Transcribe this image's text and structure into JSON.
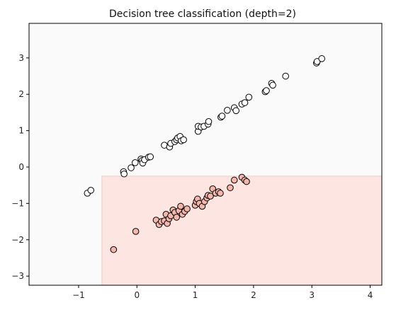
{
  "chart_data": {
    "type": "scatter",
    "title": "Decision tree classification (depth=2)",
    "xlabel": "",
    "ylabel": "",
    "xlim": [
      -1.85,
      4.2
    ],
    "ylim": [
      -3.25,
      3.95
    ],
    "xticks": [
      -1,
      0,
      1,
      2,
      3,
      4
    ],
    "yticks": [
      -3,
      -2,
      -1,
      0,
      1,
      2,
      3
    ],
    "grid": false,
    "regions": [
      {
        "class": 0,
        "x": [
          -1.85,
          4.2
        ],
        "y": [
          -3.25,
          3.95
        ],
        "color": "#fafafa"
      },
      {
        "class": 1,
        "x": [
          -0.6,
          4.2
        ],
        "y": [
          -3.25,
          -0.25
        ],
        "color": "#fde5e2"
      }
    ],
    "series": [
      {
        "color": "#ffffff",
        "points": [
          [
            -0.85,
            -0.72
          ],
          [
            -0.79,
            -0.64
          ],
          [
            -0.23,
            -0.13
          ],
          [
            -0.22,
            -0.19
          ],
          [
            -0.1,
            -0.02
          ],
          [
            -0.03,
            0.12
          ],
          [
            0.07,
            0.22
          ],
          [
            0.09,
            0.18
          ],
          [
            0.1,
            0.11
          ],
          [
            0.13,
            0.2
          ],
          [
            0.2,
            0.27
          ],
          [
            0.23,
            0.28
          ],
          [
            0.47,
            0.6
          ],
          [
            0.56,
            0.55
          ],
          [
            0.58,
            0.65
          ],
          [
            0.65,
            0.7
          ],
          [
            0.68,
            0.75
          ],
          [
            0.7,
            0.8
          ],
          [
            0.74,
            0.84
          ],
          [
            0.76,
            0.72
          ],
          [
            0.8,
            0.75
          ],
          [
            1.05,
            0.98
          ],
          [
            1.05,
            1.12
          ],
          [
            1.1,
            1.1
          ],
          [
            1.15,
            1.12
          ],
          [
            1.22,
            1.18
          ],
          [
            1.23,
            1.25
          ],
          [
            1.44,
            1.37
          ],
          [
            1.46,
            1.4
          ],
          [
            1.55,
            1.56
          ],
          [
            1.67,
            1.63
          ],
          [
            1.7,
            1.55
          ],
          [
            1.8,
            1.73
          ],
          [
            1.85,
            1.77
          ],
          [
            1.92,
            1.92
          ],
          [
            2.2,
            2.07
          ],
          [
            2.22,
            2.1
          ],
          [
            2.31,
            2.3
          ],
          [
            2.33,
            2.25
          ],
          [
            2.55,
            2.5
          ],
          [
            3.08,
            2.86
          ],
          [
            3.09,
            2.9
          ],
          [
            3.17,
            2.98
          ]
        ]
      },
      {
        "color": "#f4b6a8",
        "points": [
          [
            -0.4,
            -2.27
          ],
          [
            -0.02,
            -1.77
          ],
          [
            0.33,
            -1.46
          ],
          [
            0.38,
            -1.58
          ],
          [
            0.42,
            -1.5
          ],
          [
            0.47,
            -1.48
          ],
          [
            0.5,
            -1.3
          ],
          [
            0.52,
            -1.55
          ],
          [
            0.55,
            -1.42
          ],
          [
            0.58,
            -1.34
          ],
          [
            0.62,
            -1.18
          ],
          [
            0.65,
            -1.25
          ],
          [
            0.68,
            -1.38
          ],
          [
            0.72,
            -1.2
          ],
          [
            0.75,
            -1.08
          ],
          [
            0.78,
            -1.3
          ],
          [
            0.82,
            -1.22
          ],
          [
            0.86,
            -1.15
          ],
          [
            1.0,
            -1.05
          ],
          [
            1.02,
            -0.95
          ],
          [
            1.04,
            -0.88
          ],
          [
            1.07,
            -1.0
          ],
          [
            1.12,
            -1.08
          ],
          [
            1.16,
            -0.95
          ],
          [
            1.2,
            -0.85
          ],
          [
            1.22,
            -0.78
          ],
          [
            1.26,
            -0.8
          ],
          [
            1.3,
            -0.6
          ],
          [
            1.35,
            -0.72
          ],
          [
            1.4,
            -0.68
          ],
          [
            1.43,
            -0.72
          ],
          [
            1.6,
            -0.57
          ],
          [
            1.67,
            -0.36
          ],
          [
            1.8,
            -0.28
          ],
          [
            1.85,
            -0.36
          ],
          [
            1.88,
            -0.4
          ]
        ]
      }
    ]
  }
}
